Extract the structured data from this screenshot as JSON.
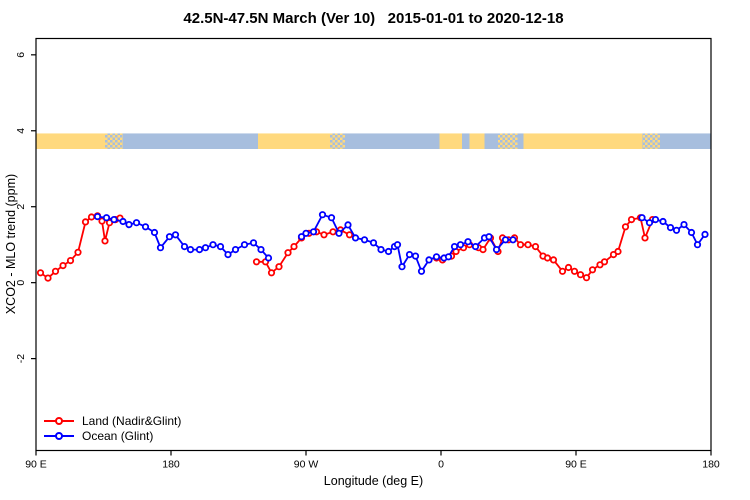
{
  "title": "42.5N-47.5N March (Ver 10)   2015-01-01 to 2020-12-18",
  "chart_data": {
    "type": "line",
    "title": "42.5N-47.5N March (Ver 10)   2015-01-01 to 2020-12-18",
    "xlabel": "Longitude (deg E)",
    "ylabel": "XCO2 - MLO trend (ppm)",
    "grid": false,
    "frame": true,
    "axis_color": "#000000",
    "x_axis": {
      "start_deg": 90,
      "end_deg": 540,
      "ticks": [
        {
          "deg": 90,
          "label": "90 E"
        },
        {
          "deg": 180,
          "label": "180"
        },
        {
          "deg": 270,
          "label": "90 W"
        },
        {
          "deg": 360,
          "label": "0"
        },
        {
          "deg": 450,
          "label": "90 E"
        },
        {
          "deg": 540,
          "label": "180"
        }
      ]
    },
    "y_axis": {
      "min": -4.42,
      "max": 6.43,
      "ticks": [
        {
          "v": -2,
          "label": "-2"
        },
        {
          "v": 0,
          "label": "0"
        },
        {
          "v": 2,
          "label": "2"
        },
        {
          "v": 4,
          "label": "4"
        },
        {
          "v": 6,
          "label": "6"
        }
      ]
    },
    "marker": {
      "shape": "open-circle",
      "radius": 2.7,
      "stroke_width": 1.8,
      "fill": "#ffffff"
    },
    "line_width": 1.8,
    "series": [
      {
        "name": "Land (Nadir&Glint)",
        "color": "#ff0000",
        "segments": [
          [
            [
              93,
              0.26
            ],
            [
              98,
              0.12
            ],
            [
              103,
              0.3
            ],
            [
              108,
              0.45
            ],
            [
              113,
              0.58
            ],
            [
              118,
              0.8
            ],
            [
              123,
              1.6
            ],
            [
              127,
              1.73
            ],
            [
              131,
              1.76
            ],
            [
              134,
              1.62
            ],
            [
              136,
              1.1
            ],
            [
              139,
              1.58
            ],
            [
              143,
              1.66
            ],
            [
              146,
              1.7
            ]
          ],
          [
            [
              237,
              0.55
            ],
            [
              243,
              0.55
            ],
            [
              247,
              0.26
            ],
            [
              252,
              0.42
            ],
            [
              258,
              0.79
            ],
            [
              262,
              0.95
            ],
            [
              267,
              1.18
            ],
            [
              272,
              1.3
            ],
            [
              277,
              1.34
            ],
            [
              282,
              1.26
            ],
            [
              288,
              1.34
            ],
            [
              293,
              1.39
            ],
            [
              299,
              1.26
            ]
          ],
          [
            [
              357,
              0.65
            ],
            [
              361,
              0.6
            ],
            [
              367,
              0.7
            ],
            [
              370,
              0.82
            ],
            [
              375,
              0.92
            ],
            [
              379,
              1.0
            ],
            [
              385,
              0.92
            ],
            [
              388,
              0.87
            ],
            [
              393,
              1.18
            ],
            [
              398,
              0.82
            ],
            [
              401,
              1.18
            ],
            [
              405,
              1.13
            ],
            [
              409,
              1.18
            ],
            [
              413,
              1.0
            ],
            [
              418,
              1.0
            ],
            [
              423,
              0.95
            ],
            [
              428,
              0.7
            ],
            [
              431,
              0.65
            ],
            [
              435,
              0.6
            ],
            [
              441,
              0.3
            ],
            [
              445,
              0.4
            ],
            [
              449,
              0.3
            ],
            [
              453,
              0.21
            ],
            [
              457,
              0.13
            ],
            [
              461,
              0.34
            ],
            [
              466,
              0.47
            ],
            [
              469,
              0.55
            ],
            [
              475,
              0.74
            ],
            [
              478,
              0.82
            ],
            [
              483,
              1.47
            ],
            [
              487,
              1.66
            ],
            [
              493,
              1.71
            ],
            [
              496,
              1.18
            ],
            [
              501,
              1.66
            ]
          ]
        ]
      },
      {
        "name": "Ocean (Glint)",
        "color": "#0000ff",
        "segments": [
          [
            [
              131,
              1.74
            ],
            [
              137,
              1.71
            ],
            [
              142,
              1.66
            ],
            [
              148,
              1.61
            ],
            [
              152,
              1.53
            ],
            [
              157,
              1.58
            ],
            [
              163,
              1.47
            ],
            [
              169,
              1.32
            ],
            [
              173,
              0.92
            ],
            [
              179,
              1.21
            ],
            [
              183,
              1.26
            ],
            [
              189,
              0.95
            ],
            [
              193,
              0.87
            ],
            [
              199,
              0.87
            ],
            [
              203,
              0.92
            ],
            [
              208,
              1.0
            ],
            [
              213,
              0.95
            ],
            [
              218,
              0.74
            ],
            [
              223,
              0.87
            ],
            [
              229,
              1.0
            ],
            [
              235,
              1.05
            ],
            [
              240,
              0.87
            ],
            [
              245,
              0.65
            ]
          ],
          [
            [
              267,
              1.21
            ],
            [
              270,
              1.3
            ],
            [
              275,
              1.34
            ],
            [
              281,
              1.79
            ],
            [
              287,
              1.71
            ],
            [
              292,
              1.3
            ],
            [
              298,
              1.52
            ],
            [
              303,
              1.18
            ],
            [
              309,
              1.13
            ],
            [
              315,
              1.05
            ],
            [
              320,
              0.87
            ],
            [
              325,
              0.82
            ],
            [
              329,
              0.95
            ],
            [
              331,
              1.0
            ],
            [
              334,
              0.42
            ],
            [
              339,
              0.74
            ],
            [
              343,
              0.7
            ],
            [
              347,
              0.3
            ],
            [
              352,
              0.6
            ],
            [
              357,
              0.68
            ],
            [
              362,
              0.65
            ],
            [
              365,
              0.68
            ],
            [
              369,
              0.95
            ],
            [
              373,
              1.0
            ],
            [
              378,
              1.08
            ],
            [
              383,
              0.95
            ],
            [
              389,
              1.18
            ],
            [
              392,
              1.21
            ],
            [
              397,
              0.87
            ],
            [
              403,
              1.13
            ],
            [
              408,
              1.13
            ]
          ],
          [
            [
              494,
              1.71
            ],
            [
              499,
              1.58
            ],
            [
              503,
              1.66
            ],
            [
              508,
              1.61
            ],
            [
              513,
              1.45
            ],
            [
              517,
              1.38
            ],
            [
              522,
              1.53
            ],
            [
              527,
              1.32
            ],
            [
              531,
              1.0
            ],
            [
              536,
              1.27
            ]
          ]
        ]
      }
    ],
    "map_strip": {
      "description": "land/ocean strip along 42.5N-47.5N",
      "land_color": "#ffd97e",
      "ocean_color": "#a7bede",
      "y_top_value": 3.93,
      "y_bottom_value": 3.52,
      "segments": [
        {
          "from": 90,
          "to": 136,
          "surface": "land"
        },
        {
          "from": 136,
          "to": 148,
          "surface": "mixed"
        },
        {
          "from": 148,
          "to": 238,
          "surface": "ocean"
        },
        {
          "from": 238,
          "to": 286,
          "surface": "land"
        },
        {
          "from": 286,
          "to": 296,
          "surface": "mixed"
        },
        {
          "from": 296,
          "to": 359,
          "surface": "ocean"
        },
        {
          "from": 359,
          "to": 374,
          "surface": "land"
        },
        {
          "from": 374,
          "to": 379,
          "surface": "ocean"
        },
        {
          "from": 379,
          "to": 389,
          "surface": "land"
        },
        {
          "from": 389,
          "to": 398,
          "surface": "ocean"
        },
        {
          "from": 398,
          "to": 411,
          "surface": "mixed"
        },
        {
          "from": 411,
          "to": 415,
          "surface": "ocean"
        },
        {
          "from": 415,
          "to": 494,
          "surface": "land"
        },
        {
          "from": 494,
          "to": 506,
          "surface": "mixed"
        },
        {
          "from": 506,
          "to": 540,
          "surface": "ocean"
        }
      ]
    },
    "legend": {
      "position": "bottom-left",
      "items": [
        {
          "label": "Land (Nadir&Glint)",
          "color": "#ff0000"
        },
        {
          "label": "Ocean (Glint)",
          "color": "#0000ff"
        }
      ]
    }
  }
}
